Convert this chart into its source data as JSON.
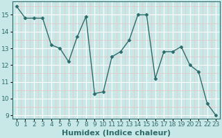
{
  "x": [
    0,
    1,
    2,
    3,
    4,
    5,
    6,
    7,
    8,
    9,
    10,
    11,
    12,
    13,
    14,
    15,
    16,
    17,
    18,
    19,
    20,
    21,
    22,
    23
  ],
  "y": [
    15.5,
    14.8,
    14.8,
    14.8,
    13.2,
    13.0,
    12.2,
    13.7,
    14.9,
    10.3,
    10.4,
    12.5,
    12.8,
    13.5,
    15.0,
    15.0,
    11.2,
    12.8,
    12.8,
    13.1,
    12.0,
    11.6,
    9.7,
    9.0
  ],
  "line_color": "#2e6b6b",
  "marker": "D",
  "marker_size": 2.5,
  "bg_color": "#c8e8e8",
  "grid_major_color": "#ffffff",
  "grid_minor_color": "#e8c8c8",
  "xlabel": "Humidex (Indice chaleur)",
  "xlim": [
    -0.5,
    23.5
  ],
  "ylim": [
    8.8,
    15.8
  ],
  "xticks": [
    0,
    1,
    2,
    3,
    4,
    5,
    6,
    7,
    8,
    9,
    10,
    11,
    12,
    13,
    14,
    15,
    16,
    17,
    18,
    19,
    20,
    21,
    22,
    23
  ],
  "yticks": [
    9,
    10,
    11,
    12,
    13,
    14,
    15
  ],
  "xlabel_fontsize": 8,
  "tick_fontsize": 6.5
}
